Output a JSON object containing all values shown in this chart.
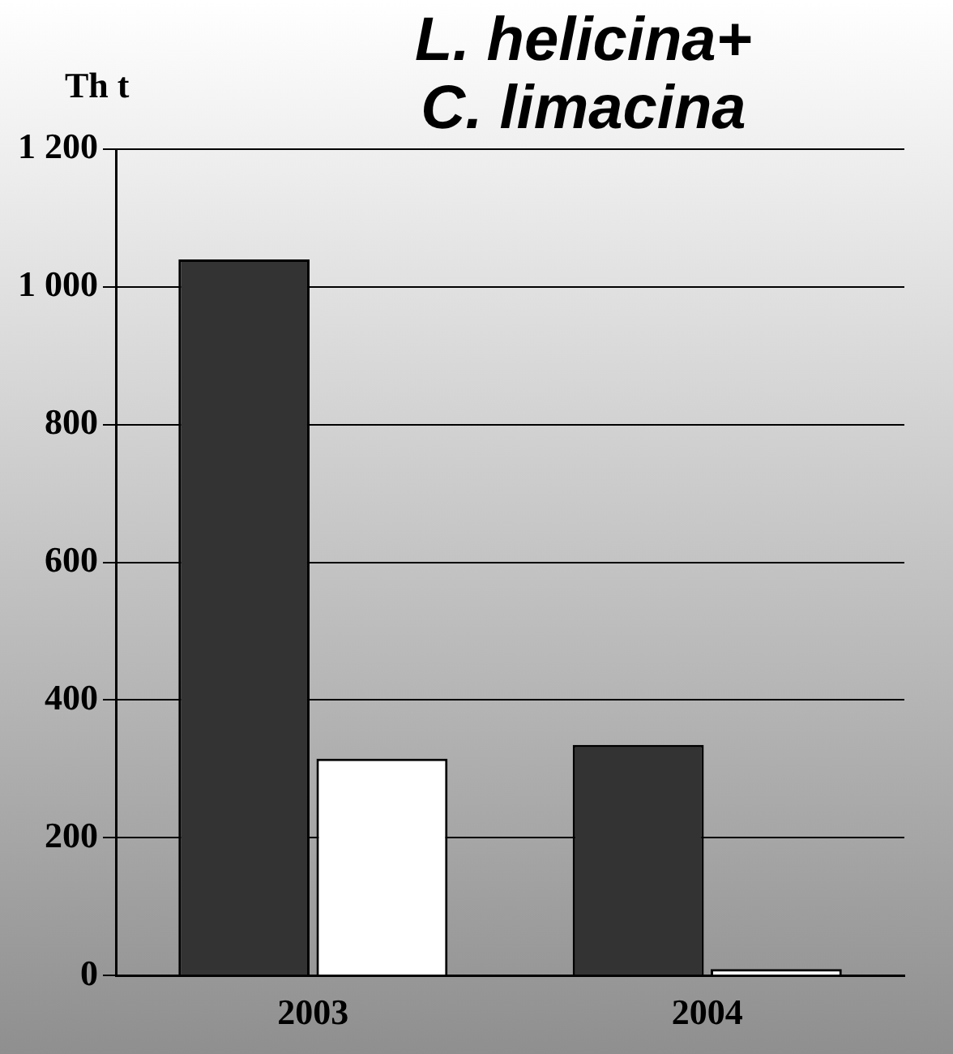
{
  "chart_data": {
    "type": "bar",
    "title": "L. helicina+\nC. limacina",
    "ylabel": "Th t",
    "categories": [
      "2003",
      "2004"
    ],
    "series": [
      {
        "color": "#333333",
        "values": [
          1040,
          335
        ]
      },
      {
        "color": "#ffffff",
        "values": [
          315,
          2
        ]
      }
    ],
    "ylim": [
      0,
      1200
    ],
    "yticks": [
      {
        "value": 0,
        "label": "0"
      },
      {
        "value": 200,
        "label": "200"
      },
      {
        "value": 400,
        "label": "400"
      },
      {
        "value": 600,
        "label": "600"
      },
      {
        "value": 800,
        "label": "800"
      },
      {
        "value": 1000,
        "label": "1 000"
      },
      {
        "value": 1200,
        "label": "1 200"
      }
    ],
    "grid": "y",
    "legend": false
  }
}
